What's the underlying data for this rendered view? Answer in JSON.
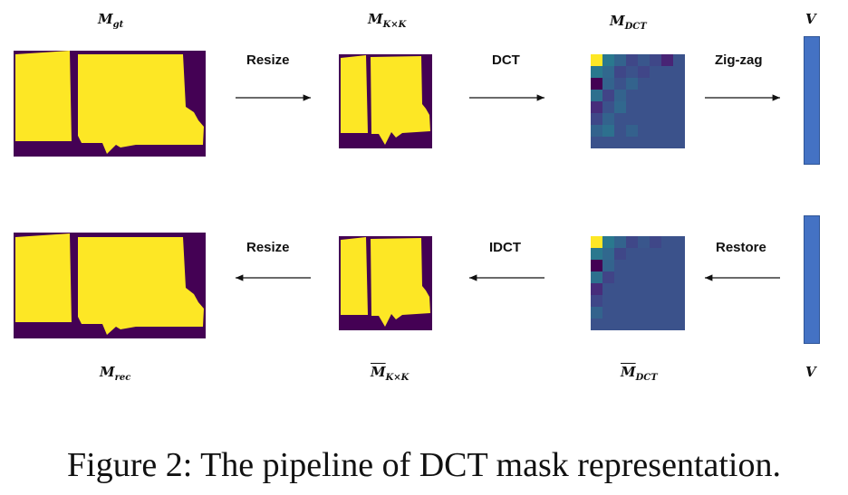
{
  "labels": {
    "m_gt": {
      "main": "M",
      "sub": "gt"
    },
    "m_kxk": {
      "main": "M",
      "sub": "K×K"
    },
    "m_dct": {
      "main": "M",
      "sub": "DCT"
    },
    "v_top": "V",
    "m_rec": {
      "main": "M",
      "sub": "rec"
    },
    "m_kxk_bar": {
      "main": "M",
      "sub": "K×K"
    },
    "m_dct_bar": {
      "main": "M",
      "sub": "DCT"
    },
    "v_bottom": "V"
  },
  "arrows": {
    "resize_top": "Resize",
    "dct": "DCT",
    "zigzag": "Zig-zag",
    "resize_bottom": "Resize",
    "idct": "IDCT",
    "restore": "Restore"
  },
  "caption": "Figure 2: The pipeline of DCT mask representation.",
  "colors": {
    "mask_bg": "#440154",
    "mask_fg": "#fde725",
    "dct_bg": "#3b528b",
    "vector": "#4472c4"
  }
}
